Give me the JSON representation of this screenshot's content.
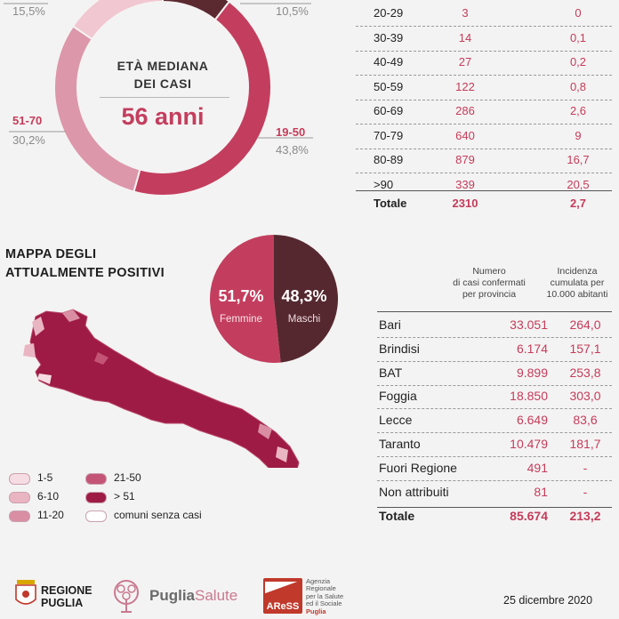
{
  "donut": {
    "center_title_line1": "ETÀ MEDIANA",
    "center_title_line2": "DEI CASI",
    "center_value": "56 anni",
    "segments": [
      {
        "range": "19-50",
        "pct_label": "43,8%",
        "pct": 43.8,
        "color": "#c33e5e"
      },
      {
        "range": "51-70",
        "pct_label": "30,2%",
        "pct": 30.2,
        "color": "#dc97aa"
      },
      {
        "range": "",
        "pct_label": "15,5%",
        "pct": 15.5,
        "color": "#f1c7d1"
      },
      {
        "range": "",
        "pct_label": "10,5%",
        "pct": 10.5,
        "color": "#5b2a31"
      }
    ]
  },
  "age_table": {
    "rows": [
      {
        "age": "20-29",
        "cases": "3",
        "letality": "0"
      },
      {
        "age": "30-39",
        "cases": "14",
        "letality": "0,1"
      },
      {
        "age": "40-49",
        "cases": "27",
        "letality": "0,2"
      },
      {
        "age": "50-59",
        "cases": "122",
        "letality": "0,8"
      },
      {
        "age": "60-69",
        "cases": "286",
        "letality": "2,6"
      },
      {
        "age": "70-79",
        "cases": "640",
        "letality": "9"
      },
      {
        "age": "80-89",
        "cases": "879",
        "letality": "16,7"
      },
      {
        "age": ">90",
        "cases": "339",
        "letality": "20,5"
      }
    ],
    "total_label": "Totale",
    "total_cases": "2310",
    "total_letality": "2,7"
  },
  "map_section": {
    "title_line1": "MAPPA DEGLI",
    "title_line2": "ATTUALMENTE POSITIVI",
    "legend": [
      {
        "label": "1-5",
        "color": "#f6dde3"
      },
      {
        "label": "6-10",
        "color": "#eab5c2"
      },
      {
        "label": "11-20",
        "color": "#d98ea3"
      },
      {
        "label": "21-50",
        "color": "#c45475"
      },
      {
        "label": "> 51",
        "color": "#9e1b45"
      },
      {
        "label": "comuni senza casi",
        "color": "#ffffff"
      }
    ]
  },
  "gender": {
    "female_pct": "51,7%",
    "female_label": "Femmine",
    "male_pct": "48,3%",
    "male_label": "Maschi",
    "female_value": 51.7,
    "female_color": "#c33e5e",
    "male_color": "#55282f"
  },
  "province_table": {
    "header_cases": [
      "Numero",
      "di casi confermati",
      "per provincia"
    ],
    "header_incidence": [
      "Incidenza",
      "cumulata per",
      "10.000 abitanti"
    ],
    "rows": [
      {
        "name": "Bari",
        "cases": "33.051",
        "incidence": "264,0"
      },
      {
        "name": "Brindisi",
        "cases": "6.174",
        "incidence": "157,1"
      },
      {
        "name": "BAT",
        "cases": "9.899",
        "incidence": "253,8"
      },
      {
        "name": "Foggia",
        "cases": "18.850",
        "incidence": "303,0"
      },
      {
        "name": "Lecce",
        "cases": "6.649",
        "incidence": "83,6"
      },
      {
        "name": "Taranto",
        "cases": "10.479",
        "incidence": "181,7"
      },
      {
        "name": "Fuori Regione",
        "cases": "491",
        "incidence": "-"
      },
      {
        "name": "Non attribuiti",
        "cases": "81",
        "incidence": "-"
      }
    ],
    "total_label": "Totale",
    "total_cases": "85.674",
    "total_incidence": "213,2"
  },
  "footer": {
    "regione_line1": "REGIONE",
    "regione_line2": "PUGLIA",
    "puglia": "Puglia",
    "salute": "Salute",
    "aress_logo": "AReSS",
    "aress_text": [
      "Agenzia",
      "Regionale",
      "per la Salute",
      "ed il Sociale"
    ],
    "aress_puglia": "Puglia",
    "date": "25 dicembre 2020"
  }
}
